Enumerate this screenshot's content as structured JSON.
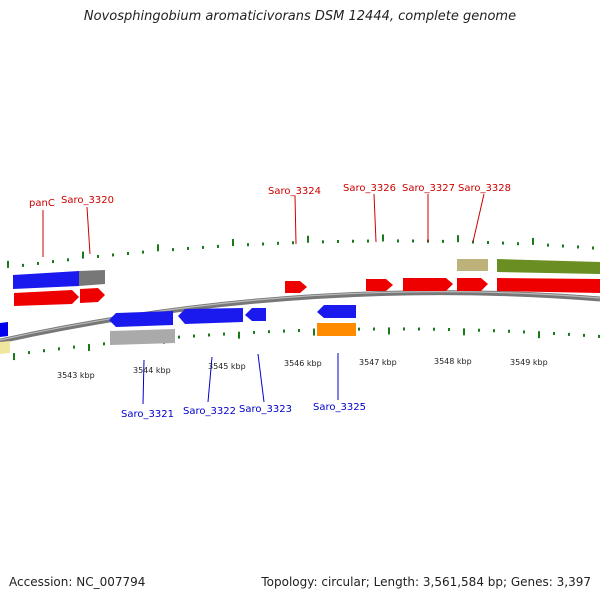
{
  "title": "Novosphingobium aromaticivorans DSM 12444, complete genome",
  "footer": {
    "accession": "Accession: NC_007794",
    "topology": "Topology: circular; Length: 3,561,584 bp; Genes: 3,397"
  },
  "ticks": [
    "3543 kbp",
    "3544 kbp",
    "3545 kbp",
    "3546 kbp",
    "3547 kbp",
    "3548 kbp",
    "3549 kbp"
  ],
  "labels_forward": [
    "panC",
    "Saro_3320",
    "Saro_3324",
    "Saro_3326",
    "Saro_3327",
    "Saro_3328"
  ],
  "labels_reverse": [
    "Saro_3321",
    "Saro_3322",
    "Saro_3323",
    "Saro_3325"
  ],
  "colors": {
    "forward_gene": "#ee0000",
    "reverse_gene": "#0000ee",
    "forward_label": "#cc0000",
    "reverse_label": "#0000cc",
    "tick": "#1a7a1a",
    "backbone": "#777777",
    "gray_feature": "#999999",
    "olive_feature": "#6b8e23",
    "tan_feature": "#bdb27a",
    "orange_feature": "#ff8c00",
    "pale_feature": "#f0e6a0"
  }
}
